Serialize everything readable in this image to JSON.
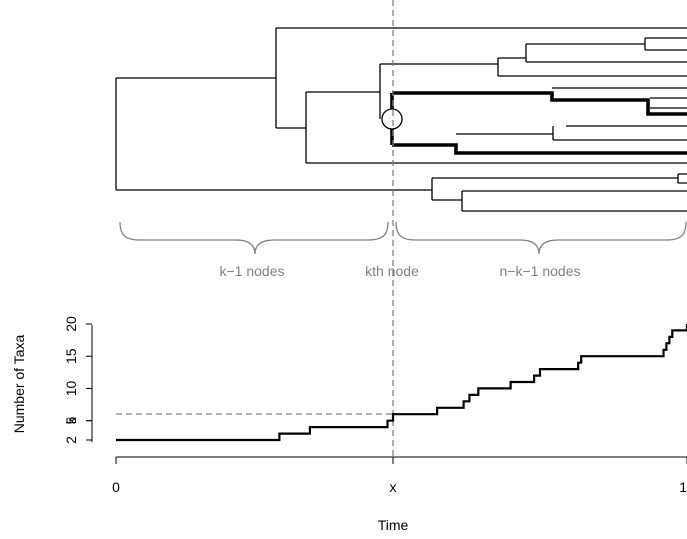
{
  "tree": {
    "brace_labels": {
      "left": "k−1 nodes",
      "middle": "kth node",
      "right": "n−k−1 nodes"
    },
    "label_color": "#808080"
  },
  "chart_data": {
    "type": "line",
    "title": "",
    "xlabel": "Time",
    "ylabel": "Number of Taxa",
    "x_ticks": [
      "0",
      "x",
      "1"
    ],
    "y_ticks": [
      "2",
      "k",
      "5",
      "10",
      "15",
      "20"
    ],
    "y_tick_values": [
      2,
      5,
      5,
      10,
      15,
      20
    ],
    "reference_lines": {
      "vertical_at": "x",
      "horizontal_at": "k"
    },
    "series": [
      {
        "x": [
          0,
          0.59,
          0.7,
          0.98,
          1.0,
          1.15,
          1.24,
          1.26,
          1.29,
          1.4,
          1.48,
          1.5,
          1.63,
          1.64,
          1.92,
          1.93,
          1.94,
          1.95,
          1.96,
          1.97,
          2.0
        ],
        "values": [
          2,
          3,
          4,
          5,
          6,
          7,
          8,
          9,
          10,
          11,
          12,
          13,
          14,
          15,
          16,
          17,
          18,
          19,
          19,
          19,
          20
        ]
      }
    ]
  }
}
